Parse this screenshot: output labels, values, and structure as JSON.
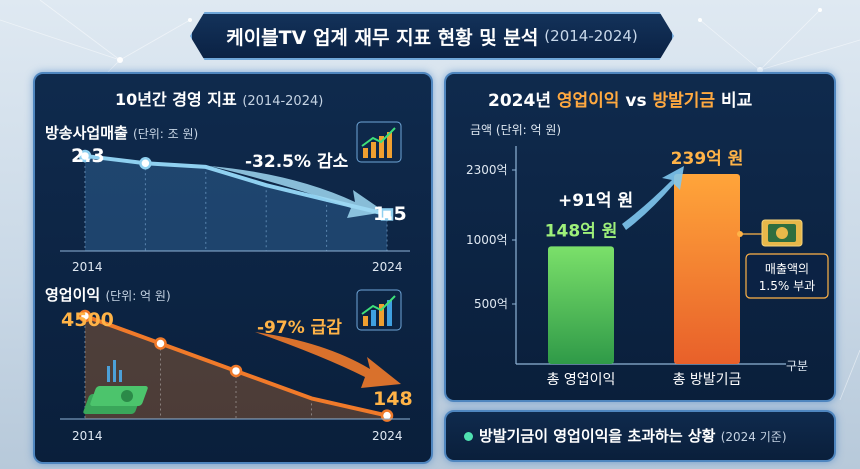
{
  "header": {
    "title": "케이블TV 업계 재무 지표 현황 및 분석",
    "period": "(2014-2024)"
  },
  "left_panel": {
    "title": "10년간 경영 지표",
    "period": "(2014-2024)"
  },
  "right_panel": {
    "title_prefix": "2024년 ",
    "title_a": "영업이익",
    "title_vs": " vs ",
    "title_b": "방발기금",
    "title_suffix": " 비교"
  },
  "footer": {
    "text": "방발기금이 영업이익을 초과하는 상황",
    "note": "(2024 기준)"
  },
  "colors": {
    "revenue": "#8fd0f0",
    "profit": "#f07a2a",
    "bar_profit": "#6fd46a",
    "bar_fund": "#f58a2a",
    "accent_green": "#9ef07a",
    "accent_orange": "#ffb347"
  },
  "chart_data": [
    {
      "type": "line",
      "title": "방송사업매출",
      "unit": "(단위: 조 원)",
      "x_labels": [
        "2014",
        "2024"
      ],
      "values": [
        2.3,
        2.2,
        2.15,
        1.9,
        1.7,
        1.5
      ],
      "ylim": [
        1.0,
        2.6
      ],
      "start_label": "2.3",
      "end_label": "1.5",
      "annotation": "-32.5% 감소"
    },
    {
      "type": "line",
      "title": "영업이익",
      "unit": "(단위: 억 원)",
      "x_labels": [
        "2014",
        "2024"
      ],
      "values": [
        4500,
        3300,
        2100,
        900,
        148
      ],
      "ylim": [
        0,
        5200
      ],
      "start_label": "4500",
      "end_label": "148",
      "annotation": "-97% 급감"
    },
    {
      "type": "bar",
      "ylabel": "금액 (단위: 억 원)",
      "xlabel": "구분",
      "categories": [
        "총 영업이익",
        "총 방발기금"
      ],
      "values": [
        148,
        239
      ],
      "value_labels": [
        "148억 원",
        "239억 원"
      ],
      "yticks": [
        "2300억",
        "1000억",
        "500억"
      ],
      "diff_label": "+91억 원",
      "callout": [
        "매출액의",
        "1.5% 부과"
      ]
    }
  ]
}
